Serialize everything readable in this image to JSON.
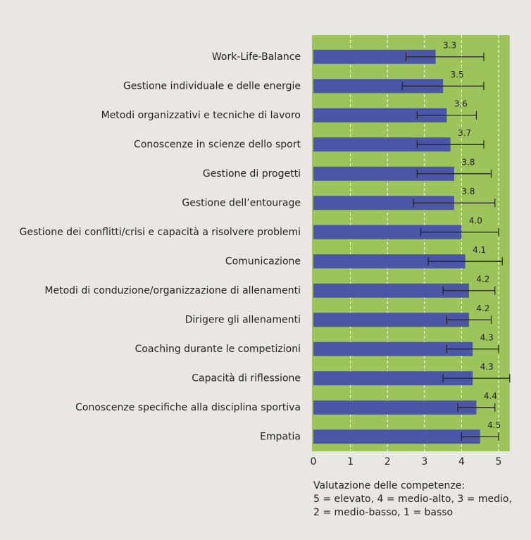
{
  "chart_data": {
    "type": "hbar",
    "categories": [
      "Work-Life-Balance",
      "Gestione individuale e delle energie",
      "Metodi organizzativi e tecniche di lavoro",
      "Conoscenze in scienze dello sport",
      "Gestione di progetti",
      "Gestione dell’entourage",
      "Gestione dei conflitti/crisi e capacità a risolvere problemi",
      "Comunicazione",
      "Metodi di conduzione/organizzazione di allenamenti",
      "Dirigere gli allenamenti",
      "Coaching durante le competizioni",
      "Capacità di riflessione",
      "Conoscenze specifiche alla disciplina sportiva",
      "Empatia"
    ],
    "values": [
      3.3,
      3.5,
      3.6,
      3.7,
      3.8,
      3.8,
      4.0,
      4.1,
      4.2,
      4.2,
      4.3,
      4.3,
      4.4,
      4.5
    ],
    "value_labels": [
      "3.3",
      "3.5",
      "3.6",
      "3.7",
      "3.8",
      "3.8",
      "4.0",
      "4.1",
      "4.2",
      "4.2",
      "4.3",
      "4.3",
      "4.4",
      "4.5"
    ],
    "error_low": [
      2.5,
      2.4,
      2.8,
      2.8,
      2.8,
      2.7,
      2.9,
      3.1,
      3.5,
      3.6,
      3.6,
      3.5,
      3.9,
      4.0
    ],
    "error_high": [
      4.6,
      4.6,
      4.4,
      4.6,
      4.8,
      4.9,
      5.0,
      5.1,
      4.9,
      4.8,
      5.0,
      5.3,
      4.9,
      5.0
    ],
    "color": "#4b56a6",
    "background": "#9dc35b",
    "xlim": [
      0,
      5.3
    ],
    "xticks": [
      0,
      1,
      2,
      3,
      4,
      5
    ],
    "grid": true,
    "xlabel": [
      "Valutazione delle competenze:",
      "5 = elevato, 4 = medio-alto, 3 = medio,",
      "2 = medio-basso, 1 = basso"
    ]
  }
}
